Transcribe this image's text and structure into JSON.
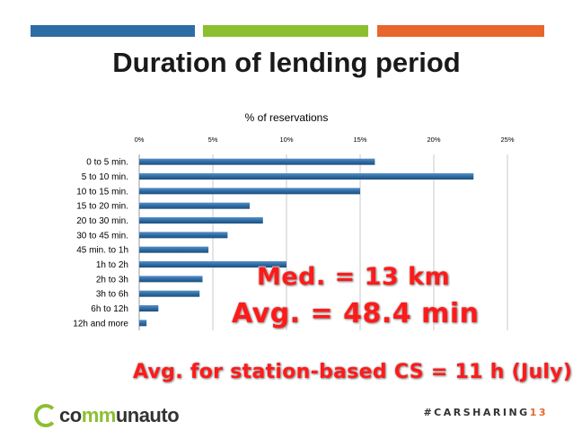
{
  "slide": {
    "title": "Duration of lending period",
    "overlay_median": "Med. = 13 km",
    "overlay_avg": "Avg. = 48.4 min",
    "overlay_station": "Avg. for station-based CS = 11 h (July)",
    "logo_prefix": "co",
    "logo_mm": "mm",
    "logo_suffix": "unauto",
    "hashtag_prefix": "#CARSHARING",
    "hashtag_number": "13",
    "colors": {
      "blue": "#2e6da4",
      "green": "#8cbf2f",
      "orange": "#e8652c",
      "overlay_red": "#ff1a1a"
    }
  },
  "chart_data": {
    "type": "bar",
    "orientation": "horizontal",
    "title": "% of reservations",
    "categories": [
      "0 to 5 min.",
      "5 to 10 min.",
      "10 to 15 min.",
      "15 to 20 min.",
      "20 to 30 min.",
      "30 to 45 min.",
      "45 min. to 1h",
      "1h to 2h",
      "2h to 3h",
      "3h to 6h",
      "6h to 12h",
      "12h and more"
    ],
    "values": [
      16,
      22.7,
      15,
      7.5,
      8.4,
      6,
      4.7,
      10,
      4.3,
      4.1,
      1.3,
      0.5
    ],
    "xlim": [
      0,
      25
    ],
    "xticks": [
      "0%",
      "5%",
      "10%",
      "15%",
      "20%",
      "25%"
    ],
    "grid": true,
    "bar_color": "#2e6da4"
  }
}
